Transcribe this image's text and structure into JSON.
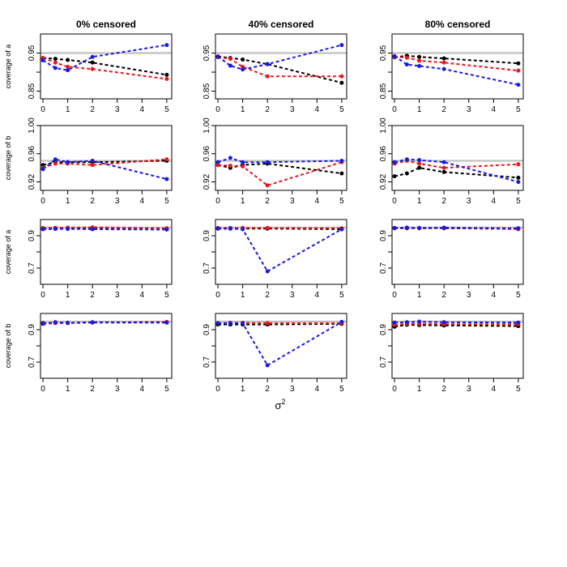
{
  "chart_data": {
    "type": "line",
    "layout": "4x3 grid of panels",
    "column_titles": [
      "0% censored",
      "40% censored",
      "80% censored"
    ],
    "row_ylabels": [
      "coverage of a",
      "coverage of b",
      "coverage of a",
      "coverage of b"
    ],
    "xlabel_base": "σ",
    "xlabel_sup": "2",
    "x": [
      0,
      0.5,
      1,
      2,
      5
    ],
    "xlim": [
      -0.1,
      5.2
    ],
    "xticks": [
      0,
      1,
      2,
      3,
      4,
      5
    ],
    "reference_line": 0.95,
    "colors": {
      "black": "#000000",
      "red": "#e8191c",
      "blue": "#1a1ae0",
      "reference": "#c0c0c0"
    },
    "rows": [
      {
        "ylim": [
          0.83,
          1.0
        ],
        "yticks": [
          0.85,
          0.9,
          0.95
        ],
        "ytick_labels": [
          "0.85",
          "",
          "0.95"
        ],
        "panels": [
          {
            "series": [
              {
                "name": "black",
                "values": [
                  0.937,
                  0.935,
                  0.932,
                  0.925,
                  0.893
                ]
              },
              {
                "name": "red",
                "values": [
                  0.937,
                  0.925,
                  0.914,
                  0.908,
                  0.882
                ]
              },
              {
                "name": "blue",
                "values": [
                  0.931,
                  0.911,
                  0.905,
                  0.94,
                  0.971
                ]
              }
            ]
          },
          {
            "series": [
              {
                "name": "black",
                "values": [
                  0.941,
                  0.937,
                  0.933,
                  0.921,
                  0.872
                ]
              },
              {
                "name": "red",
                "values": [
                  0.939,
                  0.935,
                  0.914,
                  0.889,
                  0.889
                ]
              },
              {
                "name": "blue",
                "values": [
                  0.941,
                  0.917,
                  0.907,
                  0.921,
                  0.971
                ]
              }
            ]
          },
          {
            "series": [
              {
                "name": "black",
                "values": [
                  0.939,
                  0.943,
                  0.94,
                  0.936,
                  0.923
                ]
              },
              {
                "name": "red",
                "values": [
                  0.94,
                  0.938,
                  0.93,
                  0.925,
                  0.904
                ]
              },
              {
                "name": "blue",
                "values": [
                  0.942,
                  0.92,
                  0.916,
                  0.908,
                  0.867
                ]
              }
            ]
          }
        ]
      },
      {
        "ylim": [
          0.908,
          1.0
        ],
        "yticks": [
          0.92,
          0.96,
          1.0
        ],
        "ytick_labels": [
          "0.92",
          "0.96",
          "1.00"
        ],
        "panels": [
          {
            "series": [
              {
                "name": "black",
                "values": [
                  0.944,
                  0.948,
                  0.948,
                  0.948,
                  0.95
                ]
              },
              {
                "name": "red",
                "values": [
                  0.94,
                  0.946,
                  0.946,
                  0.944,
                  0.952
                ]
              },
              {
                "name": "blue",
                "values": [
                  0.938,
                  0.952,
                  0.948,
                  0.95,
                  0.924
                ]
              }
            ]
          },
          {
            "series": [
              {
                "name": "black",
                "values": [
                  0.944,
                  0.94,
                  0.944,
                  0.946,
                  0.932
                ]
              },
              {
                "name": "red",
                "values": [
                  0.944,
                  0.943,
                  0.942,
                  0.915,
                  0.948
                ]
              },
              {
                "name": "blue",
                "values": [
                  0.948,
                  0.954,
                  0.948,
                  0.948,
                  0.95
                ]
              }
            ]
          },
          {
            "series": [
              {
                "name": "black",
                "values": [
                  0.928,
                  0.932,
                  0.94,
                  0.934,
                  0.926
                ]
              },
              {
                "name": "red",
                "values": [
                  0.946,
                  0.95,
                  0.946,
                  0.94,
                  0.945
                ]
              },
              {
                "name": "blue",
                "values": [
                  0.948,
                  0.952,
                  0.951,
                  0.948,
                  0.92
                ]
              }
            ]
          }
        ]
      },
      {
        "ylim": [
          0.6,
          1.0
        ],
        "yticks": [
          0.7,
          0.8,
          0.9
        ],
        "ytick_labels": [
          "0.7",
          "",
          "0.9"
        ],
        "panels": [
          {
            "series": [
              {
                "name": "black",
                "values": [
                  0.942,
                  0.944,
                  0.944,
                  0.944,
                  0.94
                ]
              },
              {
                "name": "red",
                "values": [
                  0.948,
                  0.949,
                  0.95,
                  0.952,
                  0.946
                ]
              },
              {
                "name": "blue",
                "values": [
                  0.94,
                  0.942,
                  0.942,
                  0.94,
                  0.938
                ]
              }
            ]
          },
          {
            "series": [
              {
                "name": "black",
                "values": [
                  0.944,
                  0.944,
                  0.944,
                  0.944,
                  0.94
                ]
              },
              {
                "name": "red",
                "values": [
                  0.948,
                  0.948,
                  0.948,
                  0.948,
                  0.946
                ]
              },
              {
                "name": "blue",
                "values": [
                  0.944,
                  0.944,
                  0.94,
                  0.68,
                  0.94
                ]
              }
            ]
          },
          {
            "series": [
              {
                "name": "black",
                "values": [
                  0.946,
                  0.946,
                  0.946,
                  0.946,
                  0.942
                ]
              },
              {
                "name": "red",
                "values": [
                  0.946,
                  0.948,
                  0.946,
                  0.948,
                  0.94
                ]
              },
              {
                "name": "blue",
                "values": [
                  0.948,
                  0.95,
                  0.948,
                  0.95,
                  0.946
                ]
              }
            ]
          }
        ]
      },
      {
        "ylim": [
          0.6,
          1.0
        ],
        "yticks": [
          0.7,
          0.8,
          0.9
        ],
        "ytick_labels": [
          "0.7",
          "",
          "0.9"
        ],
        "panels": [
          {
            "series": [
              {
                "name": "black",
                "values": [
                  0.94,
                  0.942,
                  0.942,
                  0.944,
                  0.944
                ]
              },
              {
                "name": "red",
                "values": [
                  0.936,
                  0.94,
                  0.94,
                  0.944,
                  0.948
                ]
              },
              {
                "name": "blue",
                "values": [
                  0.936,
                  0.946,
                  0.942,
                  0.946,
                  0.944
                ]
              }
            ]
          },
          {
            "series": [
              {
                "name": "black",
                "values": [
                  0.932,
                  0.932,
                  0.932,
                  0.932,
                  0.936
                ]
              },
              {
                "name": "red",
                "values": [
                  0.94,
                  0.942,
                  0.942,
                  0.94,
                  0.94
                ]
              },
              {
                "name": "blue",
                "values": [
                  0.94,
                  0.94,
                  0.94,
                  0.68,
                  0.948
                ]
              }
            ]
          },
          {
            "series": [
              {
                "name": "black",
                "values": [
                  0.918,
                  0.93,
                  0.928,
                  0.926,
                  0.922
                ]
              },
              {
                "name": "red",
                "values": [
                  0.93,
                  0.936,
                  0.936,
                  0.934,
                  0.934
                ]
              },
              {
                "name": "blue",
                "values": [
                  0.944,
                  0.946,
                  0.95,
                  0.946,
                  0.944
                ]
              }
            ]
          }
        ]
      }
    ]
  }
}
